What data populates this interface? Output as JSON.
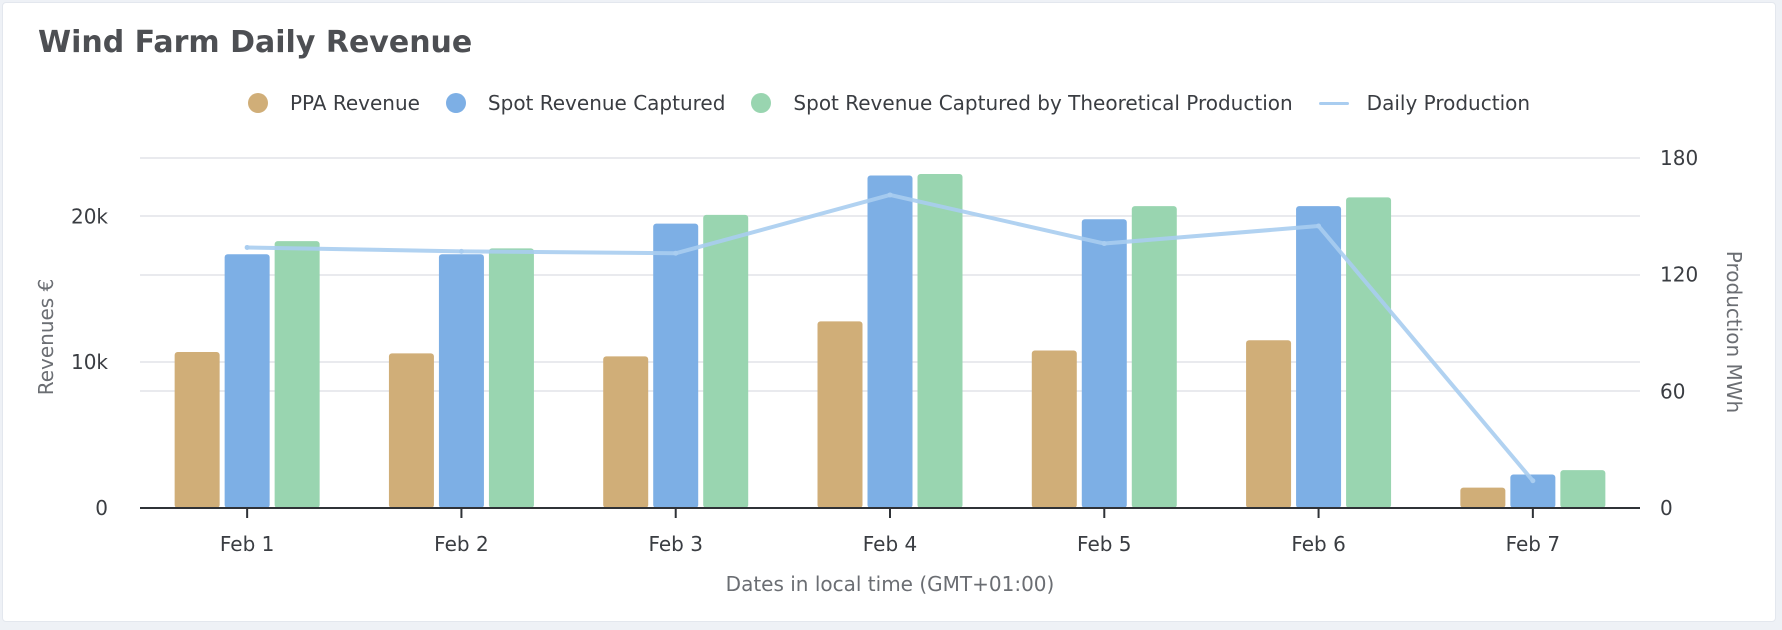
{
  "chart_data": {
    "type": "bar",
    "title": "Wind Farm Daily Revenue",
    "categories": [
      "Feb 1",
      "Feb 2",
      "Feb 3",
      "Feb 4",
      "Feb 5",
      "Feb 6",
      "Feb 7"
    ],
    "series": [
      {
        "name": "PPA Revenue",
        "kind": "bar",
        "axis": "left",
        "color": "#d0ae78",
        "values": [
          10700,
          10600,
          10400,
          12800,
          10800,
          11500,
          1400
        ]
      },
      {
        "name": "Spot Revenue Captured",
        "kind": "bar",
        "axis": "left",
        "color": "#7dafe5",
        "values": [
          17400,
          17400,
          19500,
          22800,
          19800,
          20700,
          2300
        ]
      },
      {
        "name": "Spot Revenue Captured by Theoretical Production",
        "kind": "bar",
        "axis": "left",
        "color": "#99d5b0",
        "values": [
          18300,
          17800,
          20100,
          22900,
          20700,
          21300,
          2600
        ]
      },
      {
        "name": "Daily Production",
        "kind": "line",
        "axis": "right",
        "color": "#a9cdf0",
        "values": [
          134,
          132,
          131,
          161,
          136,
          145,
          14
        ]
      }
    ],
    "xlabel": "Dates in local time (GMT+01:00)",
    "ylabel": "Revenues €",
    "y2label": "Production MWh",
    "ylim": [
      0,
      24000
    ],
    "yticks": [
      {
        "v": 0,
        "label": "0"
      },
      {
        "v": 10000,
        "label": "10k"
      },
      {
        "v": 20000,
        "label": "20k"
      }
    ],
    "y2lim": [
      0,
      180
    ],
    "y2ticks": [
      {
        "v": 0,
        "label": "0"
      },
      {
        "v": 60,
        "label": "60"
      },
      {
        "v": 120,
        "label": "120"
      },
      {
        "v": 180,
        "label": "180"
      }
    ],
    "grid": true,
    "legend_position": "top-center"
  }
}
